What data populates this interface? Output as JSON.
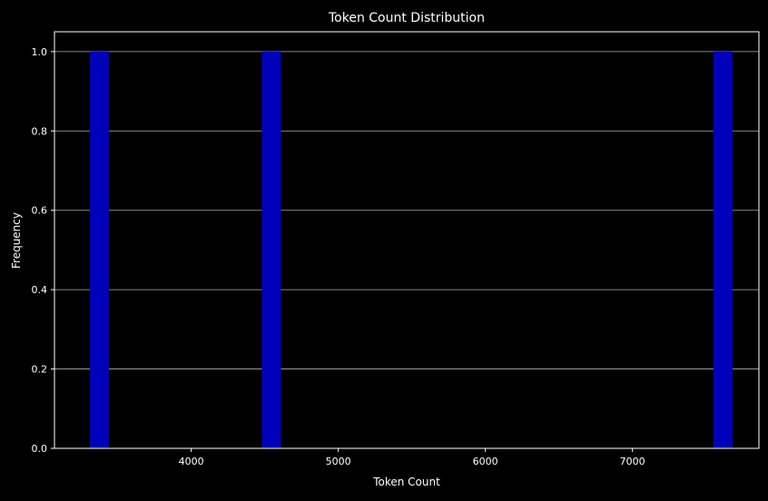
{
  "chart_data": {
    "type": "bar",
    "title": "Token Count Distribution",
    "xlabel": "Token Count",
    "ylabel": "Frequency",
    "xlim": [
      3070,
      7860
    ],
    "ylim": [
      0,
      1.05
    ],
    "x_ticks": [
      4000,
      5000,
      6000,
      7000
    ],
    "y_ticks": [
      0.0,
      0.2,
      0.4,
      0.6,
      0.8,
      1.0
    ],
    "y_tick_labels": [
      "0.0",
      "0.2",
      "0.4",
      "0.6",
      "0.8",
      "1.0"
    ],
    "bins": [
      {
        "x_start": 3310,
        "x_end": 3440,
        "value": 1
      },
      {
        "x_start": 4480,
        "x_end": 4610,
        "value": 1
      },
      {
        "x_start": 7550,
        "x_end": 7680,
        "value": 1
      }
    ],
    "grid": "horizontal",
    "colors": {
      "background": "#000000",
      "bar": "#0000bb",
      "axis": "#ffffff",
      "grid": "#b0b0b0"
    }
  }
}
